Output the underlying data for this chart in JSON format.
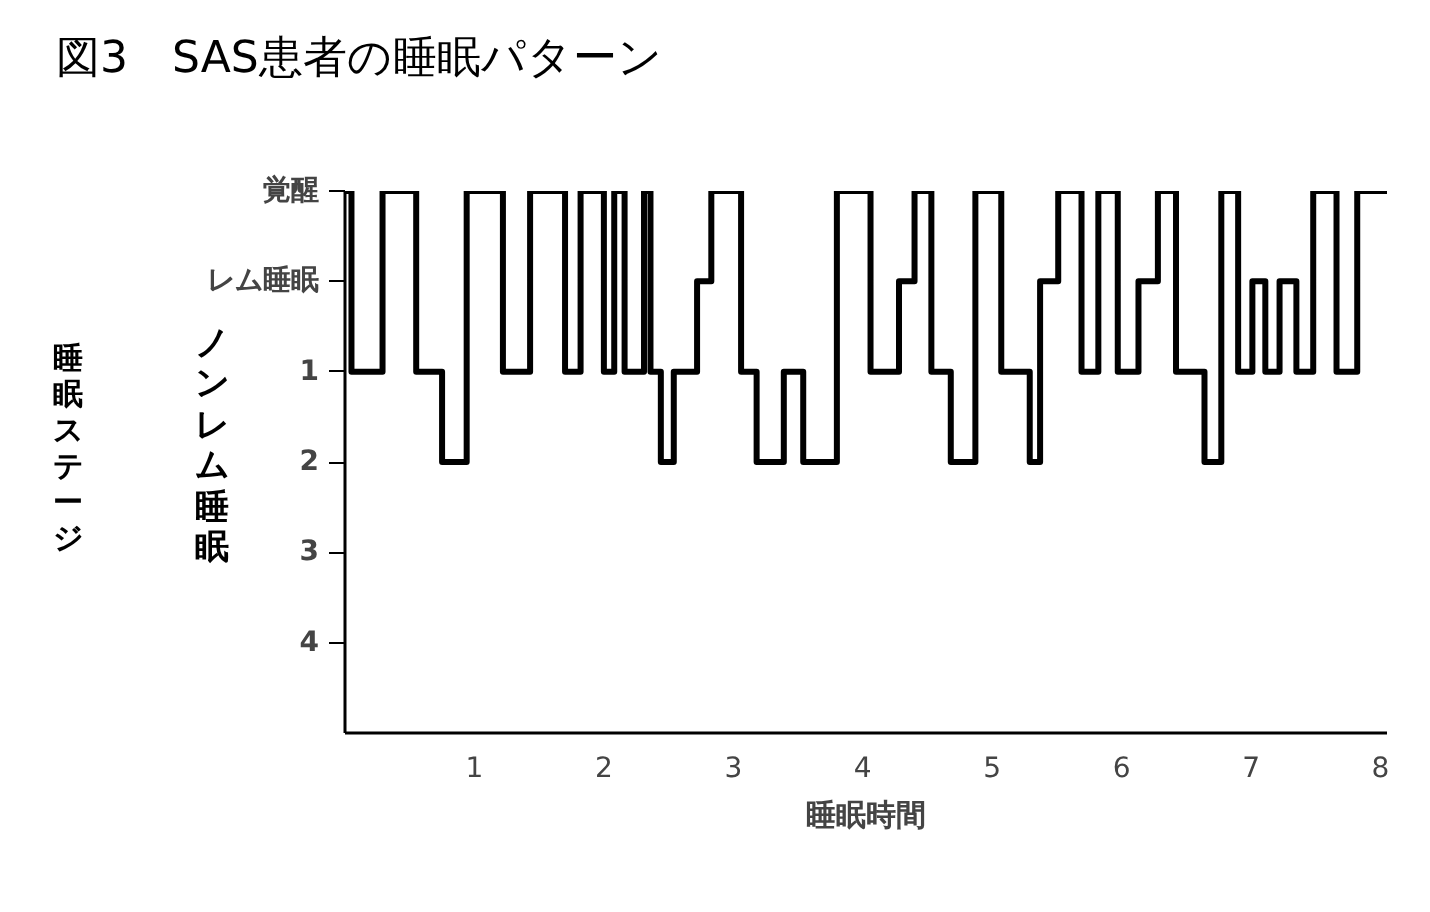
{
  "chart_data": {
    "type": "step",
    "title": "図3　SAS患者の睡眠パターン",
    "xlabel": "睡眠時間",
    "ylabel": "睡眠ステージ",
    "annotations": [
      "ノンレム睡眠"
    ],
    "x": [
      0,
      0.05,
      0.29,
      0.55,
      0.75,
      0.94,
      1.22,
      1.43,
      1.7,
      1.82,
      2.0,
      2.08,
      2.16,
      2.31,
      2.36,
      2.44,
      2.54,
      2.72,
      2.83,
      3.06,
      3.18,
      3.39,
      3.54,
      3.8,
      4.06,
      4.28,
      4.4,
      4.53,
      4.68,
      4.87,
      5.07,
      5.29,
      5.37,
      5.51,
      5.69,
      5.82,
      5.97,
      6.13,
      6.28,
      6.42,
      6.64,
      6.77,
      6.9,
      7.01,
      7.11,
      7.22,
      7.35,
      7.48,
      7.66,
      7.82,
      8.05
    ],
    "series": [
      {
        "color": "#000000",
        "values": [
          -1,
          1,
          -1,
          1,
          2,
          -1,
          1,
          -1,
          1,
          -1,
          1,
          -1,
          1,
          -1,
          1,
          2,
          1,
          0,
          -1,
          1,
          2,
          1,
          2,
          -1,
          1,
          0,
          -1,
          1,
          2,
          -1,
          1,
          2,
          0,
          -1,
          1,
          -1,
          1,
          0,
          -1,
          1,
          2,
          -1,
          1,
          0,
          1,
          0,
          1,
          -1,
          1,
          -1,
          -1
        ]
      }
    ],
    "xlim": [
      0,
      8.05
    ],
    "xticks": [
      1,
      2,
      3,
      4,
      5,
      6,
      7,
      8
    ],
    "ylim": [
      5,
      -1
    ],
    "yticks": [
      {
        "value": -1,
        "label": "覚醒"
      },
      {
        "value": 0,
        "label": "レム睡眠"
      },
      1,
      2,
      3,
      4
    ],
    "grid": false,
    "marker": "none",
    "line_style": "solid"
  }
}
